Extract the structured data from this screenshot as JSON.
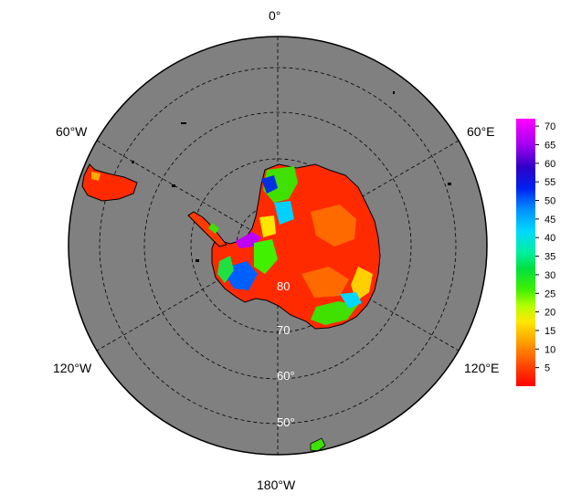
{
  "map": {
    "projection": "south polar stereographic",
    "ocean_color": "#808080",
    "border_color": "#000000",
    "graticule_style": "dashed",
    "longitude_labels": {
      "top": "0°",
      "upper_left": "60°W",
      "upper_right": "60°E",
      "lower_left": "120°W",
      "lower_right": "120°E",
      "bottom": "180°W"
    },
    "latitude_labels": [
      "80",
      "70",
      "60°",
      "50°"
    ]
  },
  "colorbar": {
    "ticks": [
      "70",
      "65",
      "60",
      "55",
      "50",
      "45",
      "40",
      "35",
      "30",
      "25",
      "20",
      "15",
      "10",
      "5"
    ],
    "range": [
      0,
      72
    ],
    "colors": [
      "#ff0000",
      "#ff5a00",
      "#ffaa00",
      "#ffff00",
      "#aaff00",
      "#00e000",
      "#00ff80",
      "#00e5ff",
      "#0080ff",
      "#0000e0",
      "#5000d0",
      "#c000ff",
      "#ff00ff"
    ]
  }
}
